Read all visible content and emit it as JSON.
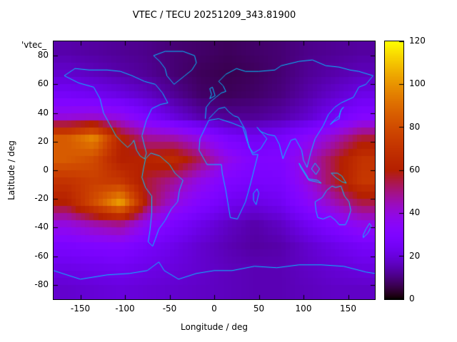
{
  "figure": {
    "title": "VTEC / TECU 20251209_343.81900",
    "xlabel": "Longitude / deg",
    "ylabel": "Latitude / deg",
    "corner_label": "'vtec_",
    "units": "TECU"
  },
  "chart_data": {
    "type": "heatmap",
    "title": "VTEC / TECU 20251209_343.81900",
    "xlabel": "Longitude / deg",
    "ylabel": "Latitude / deg",
    "xlim": [
      -180,
      180
    ],
    "ylim": [
      -90,
      90
    ],
    "x_ticks": [
      -150,
      -100,
      -50,
      0,
      50,
      100,
      150
    ],
    "y_ticks": [
      80,
      60,
      40,
      20,
      0,
      -20,
      -40,
      -60,
      -80
    ],
    "colorbar": {
      "min": 0,
      "max": 120,
      "ticks": [
        0,
        20,
        40,
        60,
        80,
        100,
        120
      ],
      "palette": "gnuplot-pm3d-traditional (black-purple-violet-orange-yellow)"
    },
    "units": "TECU",
    "grid_lons": [
      -165,
      -135,
      -105,
      -75,
      -45,
      -15,
      15,
      45,
      75,
      105,
      135,
      165
    ],
    "grid_lats": [
      82.5,
      67.5,
      52.5,
      37.5,
      22.5,
      7.5,
      -7.5,
      -22.5,
      -37.5,
      -52.5,
      -67.5,
      -82.5
    ],
    "values": [
      [
        14,
        13,
        12,
        11,
        9,
        8,
        7,
        8,
        9,
        11,
        12,
        13
      ],
      [
        18,
        16,
        14,
        12,
        9,
        7,
        6,
        7,
        9,
        12,
        14,
        16
      ],
      [
        26,
        24,
        21,
        17,
        12,
        8,
        7,
        8,
        10,
        14,
        18,
        22
      ],
      [
        40,
        42,
        38,
        28,
        20,
        14,
        12,
        12,
        14,
        18,
        25,
        32
      ],
      [
        85,
        97,
        62,
        48,
        46,
        38,
        28,
        24,
        27,
        34,
        44,
        56
      ],
      [
        85,
        80,
        60,
        62,
        66,
        52,
        38,
        30,
        31,
        42,
        56,
        70
      ],
      [
        70,
        75,
        72,
        56,
        48,
        38,
        30,
        27,
        28,
        40,
        56,
        72
      ],
      [
        60,
        80,
        103,
        56,
        40,
        31,
        24,
        21,
        24,
        34,
        45,
        55
      ],
      [
        40,
        46,
        50,
        36,
        28,
        22,
        17,
        14,
        17,
        24,
        31,
        38
      ],
      [
        28,
        30,
        31,
        26,
        22,
        18,
        15,
        13,
        14,
        18,
        22,
        26
      ],
      [
        22,
        23,
        24,
        22,
        20,
        18,
        16,
        15,
        15,
        17,
        19,
        21
      ],
      [
        18,
        19,
        20,
        19,
        18,
        17,
        16,
        15,
        15,
        16,
        17,
        17
      ]
    ],
    "coastline_color": "#00c8ff",
    "coastlines": {
      "north_america": [
        [
          -168,
          66
        ],
        [
          -152,
          61
        ],
        [
          -135,
          58
        ],
        [
          -128,
          50
        ],
        [
          -124,
          40
        ],
        [
          -117,
          32
        ],
        [
          -110,
          24
        ],
        [
          -104,
          20
        ],
        [
          -97,
          16
        ],
        [
          -92,
          19
        ],
        [
          -90,
          21
        ],
        [
          -87,
          14
        ],
        [
          -83,
          10
        ],
        [
          -78,
          8
        ],
        [
          -76,
          12
        ],
        [
          -81,
          24
        ],
        [
          -76,
          35
        ],
        [
          -70,
          43
        ],
        [
          -60,
          46
        ],
        [
          -52,
          47
        ],
        [
          -58,
          54
        ],
        [
          -66,
          60
        ],
        [
          -78,
          62
        ],
        [
          -92,
          66
        ],
        [
          -105,
          69
        ],
        [
          -120,
          70
        ],
        [
          -140,
          70
        ],
        [
          -156,
          71
        ],
        [
          -168,
          66
        ]
      ],
      "greenland": [
        [
          -45,
          60
        ],
        [
          -53,
          66
        ],
        [
          -55,
          71
        ],
        [
          -61,
          76
        ],
        [
          -68,
          80
        ],
        [
          -55,
          83
        ],
        [
          -35,
          83
        ],
        [
          -22,
          80
        ],
        [
          -20,
          75
        ],
        [
          -25,
          70
        ],
        [
          -33,
          66
        ],
        [
          -45,
          60
        ]
      ],
      "south_america": [
        [
          -77,
          8
        ],
        [
          -71,
          12
        ],
        [
          -61,
          10
        ],
        [
          -50,
          4
        ],
        [
          -44,
          -2
        ],
        [
          -35,
          -7
        ],
        [
          -39,
          -14
        ],
        [
          -41,
          -22
        ],
        [
          -48,
          -27
        ],
        [
          -55,
          -35
        ],
        [
          -62,
          -41
        ],
        [
          -66,
          -48
        ],
        [
          -69,
          -53
        ],
        [
          -74,
          -50
        ],
        [
          -72,
          -42
        ],
        [
          -70,
          -30
        ],
        [
          -70,
          -18
        ],
        [
          -77,
          -12
        ],
        [
          -81,
          -5
        ],
        [
          -79,
          2
        ],
        [
          -77,
          8
        ]
      ],
      "africa": [
        [
          -6,
          35
        ],
        [
          -16,
          22
        ],
        [
          -17,
          14
        ],
        [
          -8,
          4
        ],
        [
          8,
          4
        ],
        [
          9,
          -2
        ],
        [
          13,
          -14
        ],
        [
          18,
          -33
        ],
        [
          26,
          -34
        ],
        [
          35,
          -22
        ],
        [
          40,
          -11
        ],
        [
          49,
          11
        ],
        [
          43,
          11
        ],
        [
          37,
          20
        ],
        [
          32,
          30
        ],
        [
          20,
          33
        ],
        [
          5,
          36
        ],
        [
          -6,
          35
        ]
      ],
      "eurasia": [
        [
          -10,
          36
        ],
        [
          -9,
          44
        ],
        [
          -4,
          48
        ],
        [
          2,
          51
        ],
        [
          8,
          54
        ],
        [
          13,
          55
        ],
        [
          10,
          59
        ],
        [
          5,
          62
        ],
        [
          13,
          67
        ],
        [
          25,
          71
        ],
        [
          35,
          69
        ],
        [
          50,
          69
        ],
        [
          68,
          70
        ],
        [
          75,
          73
        ],
        [
          95,
          76
        ],
        [
          110,
          77
        ],
        [
          125,
          73
        ],
        [
          140,
          72
        ],
        [
          152,
          70
        ],
        [
          162,
          69
        ],
        [
          178,
          66
        ],
        [
          170,
          60
        ],
        [
          162,
          58
        ],
        [
          156,
          51
        ],
        [
          142,
          47
        ],
        [
          135,
          44
        ],
        [
          128,
          39
        ],
        [
          122,
          31
        ],
        [
          113,
          22
        ],
        [
          108,
          12
        ],
        [
          104,
          2
        ],
        [
          100,
          7
        ],
        [
          98,
          14
        ],
        [
          91,
          22
        ],
        [
          86,
          21
        ],
        [
          80,
          13
        ],
        [
          77,
          8
        ],
        [
          73,
          18
        ],
        [
          68,
          24
        ],
        [
          60,
          25
        ],
        [
          52,
          27
        ],
        [
          48,
          30
        ],
        [
          55,
          25
        ],
        [
          59,
          22
        ],
        [
          52,
          15
        ],
        [
          44,
          12
        ],
        [
          39,
          16
        ],
        [
          35,
          28
        ],
        [
          27,
          37
        ],
        [
          22,
          38
        ],
        [
          16,
          41
        ],
        [
          12,
          44
        ],
        [
          5,
          43
        ],
        [
          0,
          40
        ],
        [
          -6,
          36
        ]
      ],
      "uk": [
        [
          -5,
          50
        ],
        [
          -3,
          53
        ],
        [
          -5,
          57
        ],
        [
          -2,
          58
        ],
        [
          1,
          52
        ],
        [
          -5,
          50
        ]
      ],
      "japan": [
        [
          130,
          32
        ],
        [
          134,
          34
        ],
        [
          137,
          35
        ],
        [
          140,
          36
        ],
        [
          141,
          40
        ],
        [
          143,
          43
        ],
        [
          145,
          44
        ],
        [
          142,
          42
        ],
        [
          140,
          38
        ],
        [
          136,
          36
        ],
        [
          130,
          32
        ]
      ],
      "borneo": [
        [
          109,
          1
        ],
        [
          113,
          5
        ],
        [
          118,
          1
        ],
        [
          114,
          -3
        ],
        [
          109,
          1
        ]
      ],
      "sumatra_java": [
        [
          95,
          5
        ],
        [
          99,
          1
        ],
        [
          104,
          -4
        ],
        [
          106,
          -7
        ],
        [
          114,
          -8
        ],
        [
          120,
          -9
        ],
        [
          116,
          -7
        ],
        [
          105,
          -6
        ],
        [
          97,
          2
        ],
        [
          95,
          5
        ]
      ],
      "new_guinea": [
        [
          131,
          -2
        ],
        [
          138,
          -2
        ],
        [
          143,
          -4
        ],
        [
          148,
          -9
        ],
        [
          143,
          -8
        ],
        [
          136,
          -5
        ],
        [
          131,
          -2
        ]
      ],
      "australia": [
        [
          113,
          -22
        ],
        [
          114,
          -28
        ],
        [
          116,
          -33
        ],
        [
          122,
          -34
        ],
        [
          130,
          -32
        ],
        [
          136,
          -35
        ],
        [
          140,
          -38
        ],
        [
          147,
          -38
        ],
        [
          150,
          -34
        ],
        [
          153,
          -28
        ],
        [
          151,
          -22
        ],
        [
          146,
          -18
        ],
        [
          142,
          -11
        ],
        [
          136,
          -12
        ],
        [
          132,
          -11
        ],
        [
          126,
          -14
        ],
        [
          121,
          -19
        ],
        [
          113,
          -22
        ]
      ],
      "new_zealand": [
        [
          167,
          -45
        ],
        [
          170,
          -41
        ],
        [
          174,
          -37
        ],
        [
          176,
          -39
        ],
        [
          172,
          -44
        ],
        [
          167,
          -47
        ],
        [
          167,
          -45
        ]
      ],
      "madagascar": [
        [
          44,
          -16
        ],
        [
          48,
          -13
        ],
        [
          50,
          -16
        ],
        [
          47,
          -24
        ],
        [
          44,
          -21
        ],
        [
          44,
          -16
        ]
      ],
      "antarctica": [
        [
          -180,
          -70
        ],
        [
          -150,
          -76
        ],
        [
          -120,
          -73
        ],
        [
          -95,
          -72
        ],
        [
          -75,
          -70
        ],
        [
          -62,
          -64
        ],
        [
          -56,
          -70
        ],
        [
          -40,
          -76
        ],
        [
          -20,
          -72
        ],
        [
          0,
          -70
        ],
        [
          20,
          -70
        ],
        [
          45,
          -67
        ],
        [
          70,
          -68
        ],
        [
          95,
          -66
        ],
        [
          120,
          -66
        ],
        [
          145,
          -67
        ],
        [
          170,
          -71
        ],
        [
          180,
          -72
        ]
      ]
    }
  }
}
